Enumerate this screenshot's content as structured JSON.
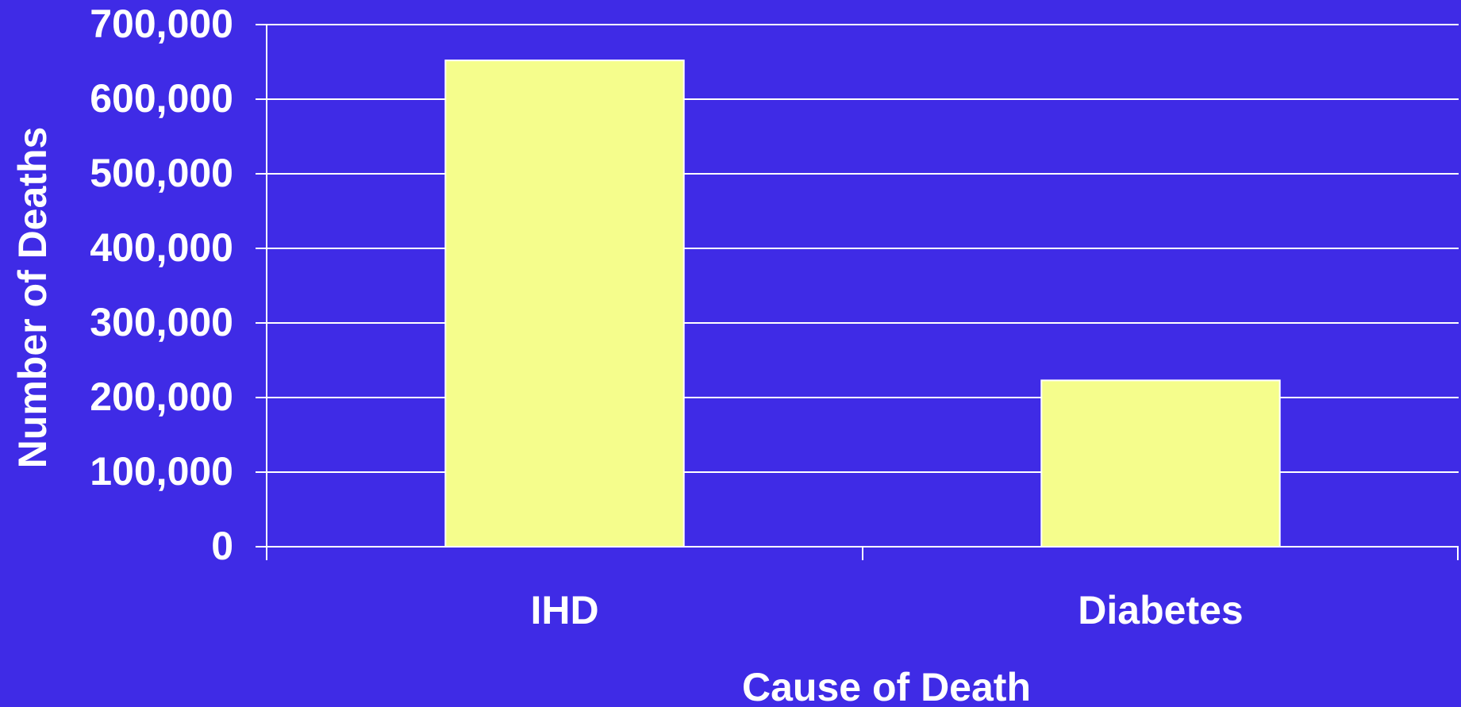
{
  "chart_data": {
    "type": "bar",
    "categories": [
      "IHD",
      "Diabetes"
    ],
    "values": [
      652000,
      223000
    ],
    "xlabel": "Cause of Death",
    "ylabel": "Number of Deaths",
    "ylim": [
      0,
      700000
    ],
    "yticks": [
      "0",
      "100,000",
      "200,000",
      "300,000",
      "400,000",
      "500,000",
      "600,000",
      "700,000"
    ],
    "grid": true,
    "legend": "none"
  },
  "colors": {
    "background": "#3f2be6",
    "bar": "#f5fd8c",
    "bar_outline": "#ffffff",
    "grid": "#ffffff",
    "text": "#ffffff"
  }
}
